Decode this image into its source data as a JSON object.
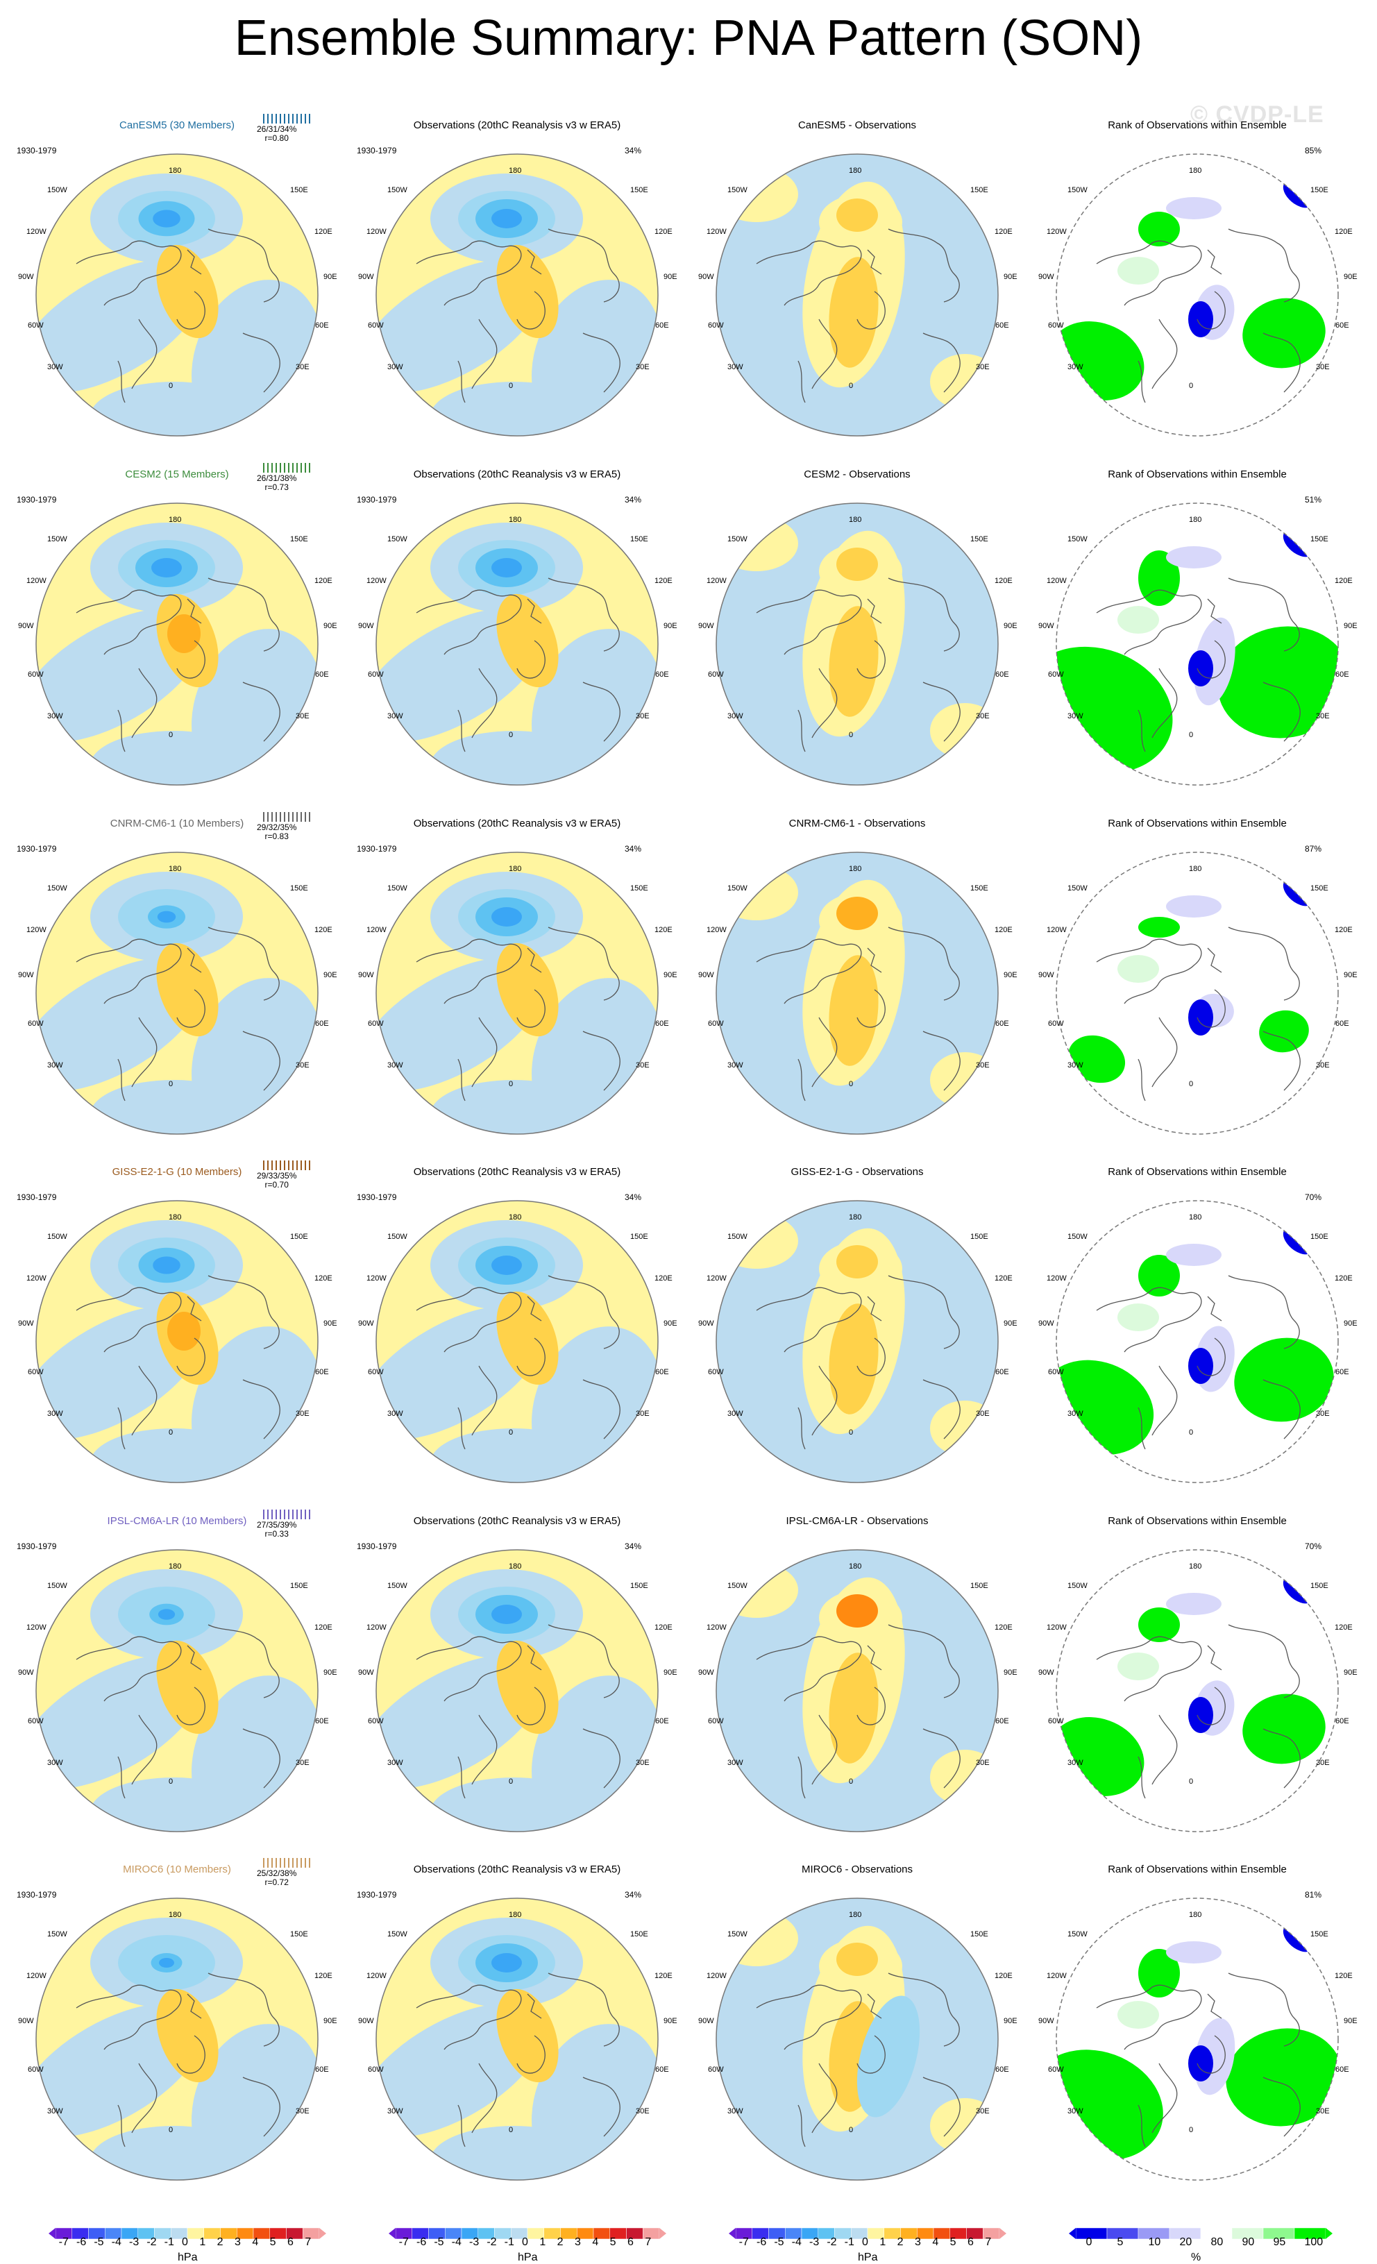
{
  "title": "Ensemble Summary: PNA Pattern (SON)",
  "watermark": "© CVDP-LE",
  "period": "1930-1979",
  "obs_title": "Observations (20thC Reanalysis v3 w ERA5)",
  "obs_pct": "34%",
  "rank_title": "Rank of Observations within Ensemble",
  "lon_labels": [
    "180",
    "150E",
    "120E",
    "90E",
    "60E",
    "30E",
    "0",
    "30W",
    "60W",
    "90W",
    "120W",
    "150W"
  ],
  "rows": [
    {
      "model": "CanESM5 (30 Members)",
      "color": "#1f6ea0",
      "stats": "26/31/34%",
      "r": "r=0.80",
      "diff_title": "CanESM5 - Observations",
      "rank_pct": "85%"
    },
    {
      "model": "CESM2 (15 Members)",
      "color": "#3c8c3c",
      "stats": "26/31/38%",
      "r": "r=0.73",
      "diff_title": "CESM2 - Observations",
      "rank_pct": "51%"
    },
    {
      "model": "CNRM-CM6-1 (10 Members)",
      "color": "#666666",
      "stats": "29/32/35%",
      "r": "r=0.83",
      "diff_title": "CNRM-CM6-1 - Observations",
      "rank_pct": "87%"
    },
    {
      "model": "GISS-E2-1-G (10 Members)",
      "color": "#9a5a1e",
      "stats": "29/33/35%",
      "r": "r=0.70",
      "diff_title": "GISS-E2-1-G - Observations",
      "rank_pct": "70%"
    },
    {
      "model": "IPSL-CM6A-LR (10 Members)",
      "color": "#7060c0",
      "stats": "27/35/39%",
      "r": "r=0.33",
      "diff_title": "IPSL-CM6A-LR - Observations",
      "rank_pct": "70%"
    },
    {
      "model": "MIROC6 (10 Members)",
      "color": "#c89a60",
      "stats": "25/32/38%",
      "r": "r=0.72",
      "diff_title": "MIROC6 - Observations",
      "rank_pct": "81%"
    }
  ],
  "colorbar_hpa": {
    "labels": [
      "-7",
      "-6",
      "-5",
      "-4",
      "-3",
      "-2",
      "-1",
      "0",
      "1",
      "2",
      "3",
      "4",
      "5",
      "6",
      "7"
    ],
    "unit": "hPa",
    "colors": [
      "#6a1bd8",
      "#3a2df0",
      "#3d5ef5",
      "#4a86f7",
      "#3aa6f5",
      "#5ec2f2",
      "#9fd8f2",
      "#bcdcf0",
      "#fff5a0",
      "#ffd24a",
      "#ffb020",
      "#ff8a10",
      "#f25010",
      "#e02020",
      "#c81830",
      "#f4a0a0"
    ]
  },
  "colorbar_rank": {
    "labels": [
      "0",
      "5",
      "10",
      "20",
      "80",
      "90",
      "95",
      "100"
    ],
    "unit": "%",
    "colors": [
      "#0000e8",
      "#4a4af0",
      "#9a9af5",
      "#d8d8fa",
      "#ffffff",
      "#dcfadc",
      "#8ef88e",
      "#00f000"
    ]
  }
}
